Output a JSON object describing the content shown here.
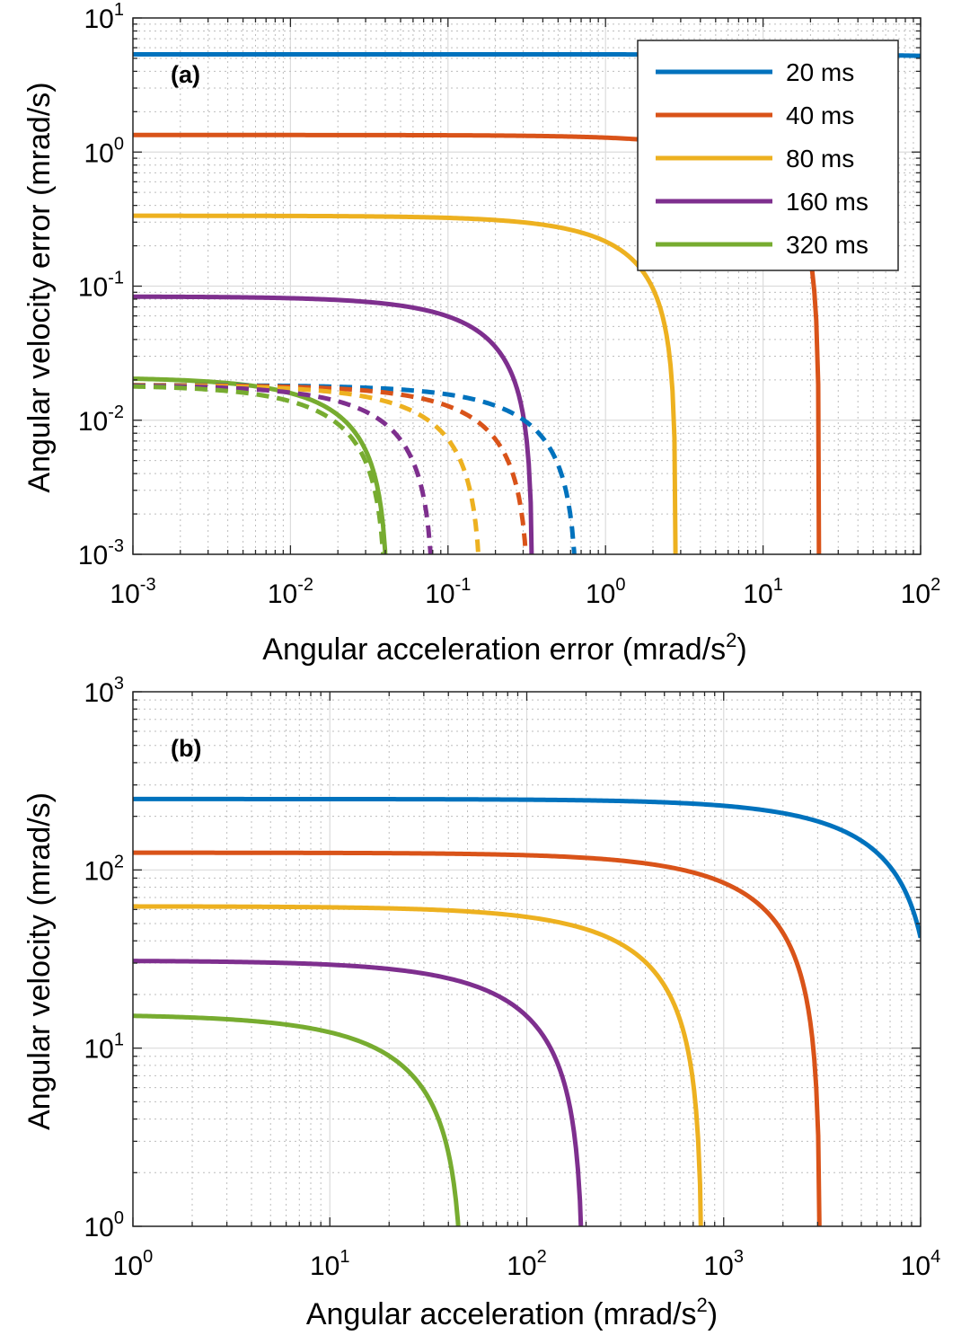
{
  "chart_data": [
    {
      "type": "line",
      "panel_label": "(a)",
      "xlabel": "Angular acceleration error (mrad/s",
      "xlabel_sup": "2",
      "xlabel_end": ")",
      "ylabel": "Angular velocity error (mrad/s)",
      "x_scale": "log",
      "y_scale": "log",
      "xlim": [
        0.001,
        100
      ],
      "ylim": [
        0.001,
        10
      ],
      "x_ticks": [
        {
          "base": "10",
          "exp": "-3"
        },
        {
          "base": "10",
          "exp": "-2"
        },
        {
          "base": "10",
          "exp": "-1"
        },
        {
          "base": "10",
          "exp": "0"
        },
        {
          "base": "10",
          "exp": "1"
        },
        {
          "base": "10",
          "exp": "2"
        }
      ],
      "y_ticks": [
        {
          "base": "10",
          "exp": "-3"
        },
        {
          "base": "10",
          "exp": "-2"
        },
        {
          "base": "10",
          "exp": "-1"
        },
        {
          "base": "10",
          "exp": "0"
        },
        {
          "base": "10",
          "exp": "1"
        }
      ],
      "grid": true,
      "legend_position": "top-right",
      "series": [
        {
          "name": "20 ms",
          "color": "#0072BD",
          "style": "solid",
          "max_y": 5.35,
          "x_cut": 4000
        },
        {
          "name": "40 ms",
          "color": "#D95319",
          "style": "solid",
          "max_y": 1.34,
          "x_cut": 22.7
        },
        {
          "name": "80 ms",
          "color": "#EDB120",
          "style": "solid",
          "max_y": 0.335,
          "x_cut": 2.8
        },
        {
          "name": "160 ms",
          "color": "#7E2F8E",
          "style": "solid",
          "max_y": 0.0837,
          "x_cut": 0.345
        },
        {
          "name": "320 ms",
          "color": "#77AC30",
          "style": "solid",
          "max_y": 0.0209,
          "x_cut": 0.042
        },
        {
          "name": "",
          "color": "#0072BD",
          "style": "dashed",
          "max_y": 0.0183,
          "x_cut": 0.67
        },
        {
          "name": "",
          "color": "#D95319",
          "style": "dashed",
          "max_y": 0.0183,
          "x_cut": 0.33
        },
        {
          "name": "",
          "color": "#EDB120",
          "style": "dashed",
          "max_y": 0.0183,
          "x_cut": 0.165
        },
        {
          "name": "",
          "color": "#7E2F8E",
          "style": "dashed",
          "max_y": 0.0183,
          "x_cut": 0.082
        },
        {
          "name": "",
          "color": "#77AC30",
          "style": "dashed",
          "max_y": 0.0183,
          "x_cut": 0.041
        }
      ]
    },
    {
      "type": "line",
      "panel_label": "(b)",
      "xlabel": "Angular acceleration (mrad/s",
      "xlabel_sup": "2",
      "xlabel_end": ")",
      "ylabel": "Angular velocity (mrad/s)",
      "x_scale": "log",
      "y_scale": "log",
      "xlim": [
        1,
        10000
      ],
      "ylim": [
        1,
        1000
      ],
      "x_ticks": [
        {
          "base": "10",
          "exp": "0"
        },
        {
          "base": "10",
          "exp": "1"
        },
        {
          "base": "10",
          "exp": "2"
        },
        {
          "base": "10",
          "exp": "3"
        },
        {
          "base": "10",
          "exp": "4"
        }
      ],
      "y_ticks": [
        {
          "base": "10",
          "exp": "0"
        },
        {
          "base": "10",
          "exp": "1"
        },
        {
          "base": "10",
          "exp": "2"
        },
        {
          "base": "10",
          "exp": "3"
        }
      ],
      "grid": true,
      "series": [
        {
          "name": "",
          "color": "#0072BD",
          "style": "solid",
          "max_y": 250,
          "x_cut": 12000
        },
        {
          "name": "",
          "color": "#D95319",
          "style": "solid",
          "max_y": 125,
          "x_cut": 3100
        },
        {
          "name": "",
          "color": "#EDB120",
          "style": "solid",
          "max_y": 62.5,
          "x_cut": 780
        },
        {
          "name": "",
          "color": "#7E2F8E",
          "style": "solid",
          "max_y": 31,
          "x_cut": 195
        },
        {
          "name": "",
          "color": "#77AC30",
          "style": "solid",
          "max_y": 15.5,
          "x_cut": 48
        }
      ]
    }
  ]
}
